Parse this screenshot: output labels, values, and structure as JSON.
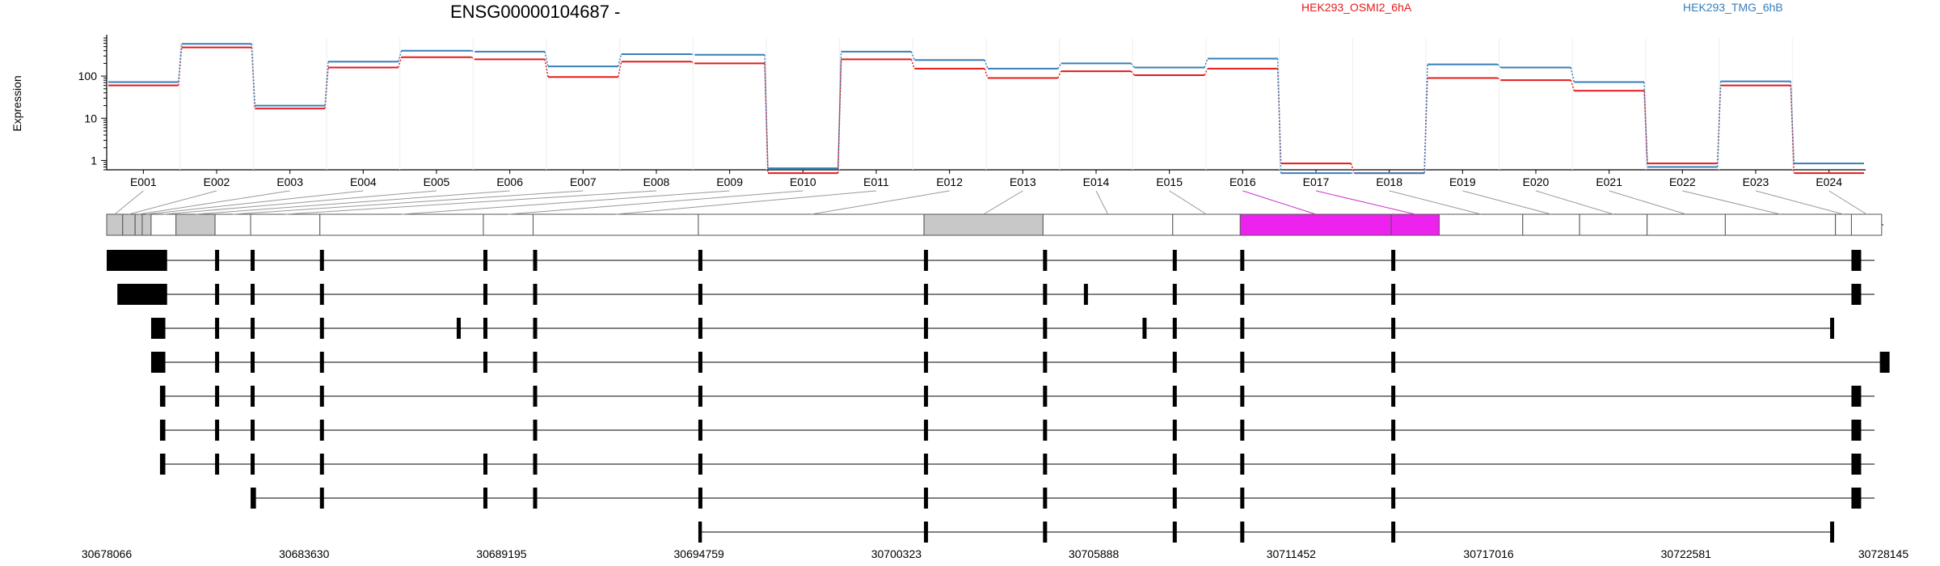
{
  "chart_data": {
    "type": "line",
    "title": "ENSG00000104687 -",
    "ylabel": "Expression",
    "y_scale": "log10",
    "ylim": [
      0.6,
      800
    ],
    "y_ticks": [
      {
        "value": 1,
        "label": "1"
      },
      {
        "value": 10,
        "label": "10"
      },
      {
        "value": 100,
        "label": "100"
      }
    ],
    "categories": [
      "E001",
      "E002",
      "E003",
      "E004",
      "E005",
      "E006",
      "E007",
      "E008",
      "E009",
      "E010",
      "E011",
      "E012",
      "E013",
      "E014",
      "E015",
      "E016",
      "E017",
      "E018",
      "E019",
      "E020",
      "E021",
      "E022",
      "E023",
      "E024"
    ],
    "series": [
      {
        "name": "HEK293_OSMI2_6hA",
        "color": "#e41a1c",
        "values": [
          60,
          480,
          17,
          160,
          280,
          250,
          95,
          220,
          200,
          0.5,
          250,
          150,
          90,
          130,
          105,
          150,
          0.85,
          0.5,
          90,
          80,
          45,
          0.85,
          60,
          0.5
        ]
      },
      {
        "name": "HEK293_TMG_6hB",
        "color": "#377eb8",
        "values": [
          72,
          580,
          20,
          220,
          400,
          380,
          170,
          330,
          320,
          0.65,
          380,
          240,
          150,
          200,
          160,
          260,
          0.5,
          0.5,
          190,
          160,
          72,
          0.7,
          75,
          0.85
        ]
      }
    ],
    "exon_colors": [
      "gray",
      "gray",
      "gray",
      "gray",
      "white",
      "gray",
      "white",
      "white",
      "white",
      "white",
      "white",
      "white",
      "gray",
      "white",
      "white",
      "magenta",
      "magenta",
      "white",
      "white",
      "white",
      "white",
      "white",
      "white",
      "white"
    ],
    "genome_axis": {
      "start": 30678066,
      "end": 30728145,
      "tick_labels": [
        "30678066",
        "30683630",
        "30689195",
        "30694759",
        "30700323",
        "30705888",
        "30711452",
        "30717016",
        "30722581",
        "30728145"
      ]
    },
    "transcript_count": 9
  }
}
